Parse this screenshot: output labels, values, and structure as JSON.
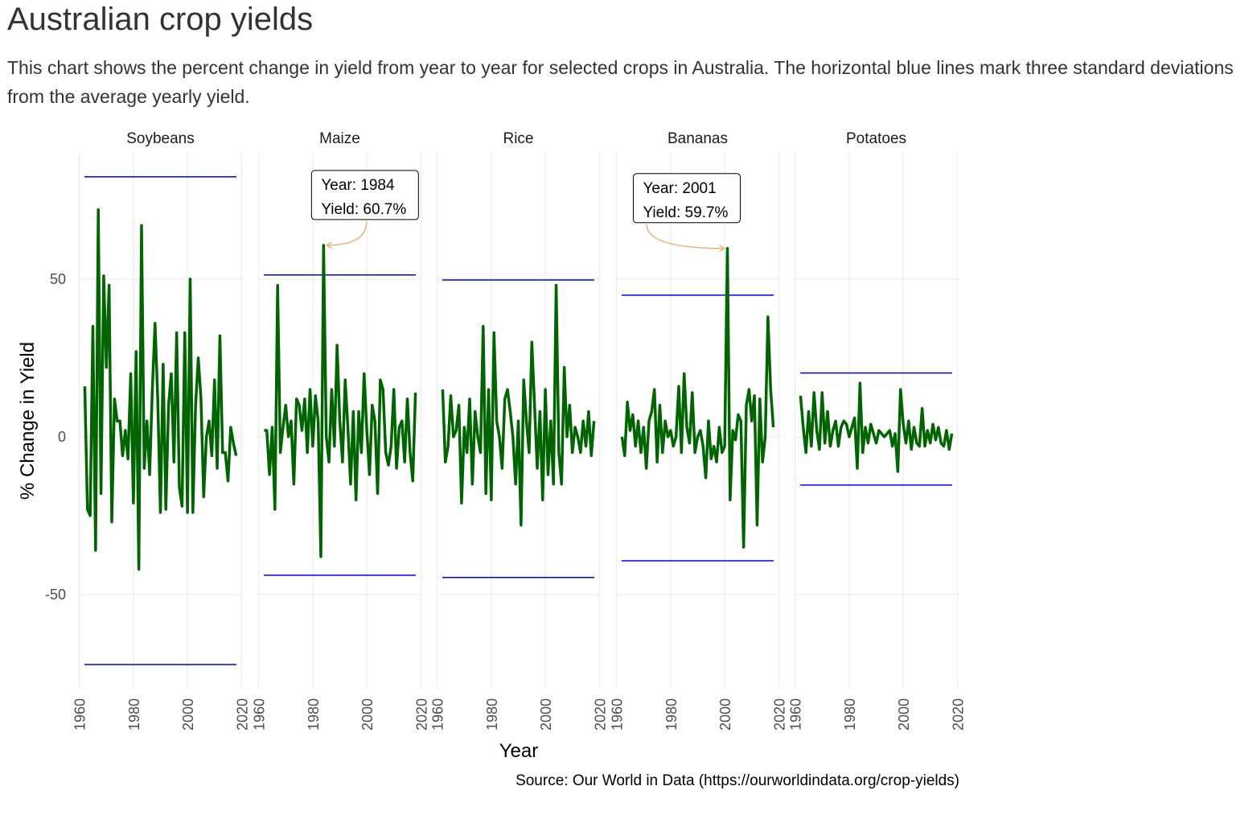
{
  "chart_data": {
    "type": "line",
    "title": "Australian crop yields",
    "subtitle": "This chart shows the percent change in yield from year to year for selected crops in Australia. The horizontal blue lines mark three standard deviations from the average yearly yield.",
    "xlabel": "Year",
    "ylabel": "% Change in Yield",
    "source": "Source: Our World in Data (https://ourworldindata.org/crop-yields)",
    "x": [
      1962,
      1963,
      1964,
      1965,
      1966,
      1967,
      1968,
      1969,
      1970,
      1971,
      1972,
      1973,
      1974,
      1975,
      1976,
      1977,
      1978,
      1979,
      1980,
      1981,
      1982,
      1983,
      1984,
      1985,
      1986,
      1987,
      1988,
      1989,
      1990,
      1991,
      1992,
      1993,
      1994,
      1995,
      1996,
      1997,
      1998,
      1999,
      2000,
      2001,
      2002,
      2003,
      2004,
      2005,
      2006,
      2007,
      2008,
      2009,
      2010,
      2011,
      2012,
      2013,
      2014,
      2015,
      2016,
      2017,
      2018
    ],
    "xlim": [
      1959.5,
      2020.5
    ],
    "xticks": [
      1960,
      1980,
      2000,
      2020
    ],
    "ylim": [
      -79.6,
      90
    ],
    "yticks": [
      -50,
      0,
      50
    ],
    "grid": true,
    "limit_color": "#0000ff",
    "series": [
      {
        "name": "Soybeans",
        "color": "#006400",
        "upper_limit": 82.4,
        "lower_limit": -72.2,
        "values": [
          16,
          -23,
          -25,
          35,
          -36,
          72,
          -18,
          51,
          22,
          48,
          -27,
          12,
          5,
          5,
          -6,
          2,
          -7,
          20,
          -21,
          27,
          -42,
          67,
          -10,
          5,
          -12,
          15,
          36,
          12,
          -24,
          23,
          -23,
          10,
          20,
          -8,
          33,
          -16,
          -22,
          33,
          -24,
          50,
          -24,
          10,
          25,
          12,
          -19,
          0,
          5,
          -6,
          18,
          -10,
          32,
          -5,
          -5,
          -14,
          3,
          -2,
          -6
        ]
      },
      {
        "name": "Maize",
        "color": "#006400",
        "upper_limit": 51.3,
        "lower_limit": -43.9,
        "values": [
          2,
          2,
          -12,
          3,
          -23,
          48,
          -5,
          3,
          10,
          0,
          5,
          -15,
          12,
          10,
          2,
          12,
          -5,
          15,
          -3,
          13,
          5,
          -38,
          60.7,
          0,
          -8,
          15,
          -3,
          29,
          5,
          -8,
          18,
          3,
          -15,
          8,
          -20,
          8,
          -5,
          20,
          2,
          -12,
          10,
          5,
          -18,
          18,
          15,
          -5,
          -9,
          -3,
          15,
          -10,
          3,
          5,
          -8,
          12,
          -5,
          -14,
          14
        ]
      },
      {
        "name": "Rice",
        "color": "#006400",
        "upper_limit": 49.7,
        "lower_limit": -44.6,
        "values": [
          15,
          -8,
          -3,
          13,
          0,
          2,
          10,
          -21,
          3,
          -5,
          12,
          -15,
          8,
          0,
          -5,
          35,
          -18,
          15,
          -20,
          33,
          5,
          0,
          -10,
          12,
          15,
          8,
          0,
          -15,
          5,
          -28,
          18,
          5,
          -5,
          30,
          10,
          -10,
          8,
          -20,
          15,
          -12,
          5,
          -15,
          48,
          -5,
          -15,
          22,
          0,
          10,
          -5,
          3,
          0,
          -5,
          5,
          -3,
          8,
          -6,
          5
        ]
      },
      {
        "name": "Bananas",
        "color": "#006400",
        "upper_limit": 44.9,
        "lower_limit": -39.3,
        "values": [
          0,
          -6,
          11,
          2,
          7,
          -3,
          5,
          -5,
          3,
          -10,
          5,
          8,
          15,
          -8,
          10,
          -5,
          5,
          0,
          2,
          -3,
          0,
          16,
          -5,
          20,
          3,
          -2,
          14,
          -5,
          0,
          2,
          -3,
          -13,
          5,
          -7,
          -3,
          -8,
          3,
          -5,
          -3,
          59.7,
          -20,
          2,
          -1,
          7,
          5,
          -35,
          10,
          15,
          5,
          13,
          -28,
          12,
          -8,
          0,
          38,
          15,
          3
        ]
      },
      {
        "name": "Potatoes",
        "color": "#006400",
        "upper_limit": 20.2,
        "lower_limit": -15.3,
        "values": [
          13,
          3,
          -5,
          8,
          -3,
          14,
          2,
          -4,
          14,
          -2,
          8,
          -3,
          2,
          5,
          -3,
          3,
          5,
          4,
          0,
          3,
          6,
          -10,
          17,
          -5,
          3,
          -2,
          4,
          1,
          -2,
          2,
          1,
          0,
          1,
          2,
          -3,
          1,
          -11,
          15,
          4,
          -2,
          5,
          -4,
          3,
          -2,
          -3,
          9,
          -3,
          2,
          -2,
          4,
          -1,
          3,
          -2,
          -3,
          2,
          -4,
          1
        ]
      }
    ],
    "annotations": [
      {
        "series": 1,
        "x": 1984,
        "y": 60.7,
        "lines": [
          "Year: 1984",
          "Yield: 60.7%"
        ]
      },
      {
        "series": 3,
        "x": 2001,
        "y": 59.7,
        "lines": [
          "Year: 2001",
          "Yield: 59.7%"
        ]
      }
    ]
  }
}
